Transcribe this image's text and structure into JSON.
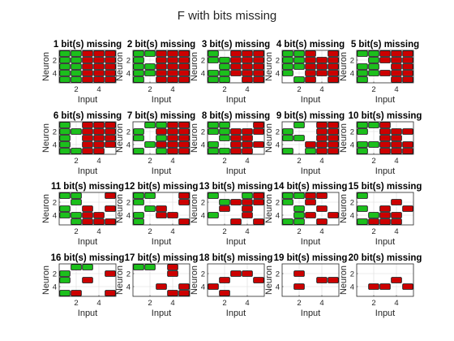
{
  "chart_data": {
    "type": "heatmap",
    "title": "F with bits missing",
    "xlabel": "Input",
    "ylabel": "Neuron",
    "x_ticks": [
      2,
      4
    ],
    "y_ticks": [
      2,
      4
    ],
    "xlim": [
      0.5,
      5.5
    ],
    "ylim": [
      0.5,
      5.5
    ],
    "grid": true,
    "cell_legend": {
      "G": "#1cbf1c",
      "R": "#cc0000",
      ".": "empty"
    },
    "panels": [
      {
        "title": "1 bit(s) missing",
        "rows": [
          "GGRRR",
          "GGRRR",
          "GGRRR",
          "GGRRR",
          "GGRRR"
        ]
      },
      {
        "title": "2 bit(s) missing",
        "rows": [
          "GGRRR",
          "G.RRR",
          "GGRRR",
          "GGRRR",
          "G.RRR"
        ]
      },
      {
        "title": "3 bit(s) missing",
        "rows": [
          "G.RRR",
          "GGRRR",
          ".GRRR",
          "GGRRR",
          "GG.RR"
        ]
      },
      {
        "title": "4 bit(s) missing",
        "rows": [
          "GGR.R",
          "GGRRR",
          "GGRRR",
          "G.RRR",
          ".GR.R"
        ]
      },
      {
        "title": "5 bit(s) missing",
        "rows": [
          "GGRRR",
          ".GRRR",
          "GG.RR",
          "GGRRR",
          "G..RR"
        ]
      },
      {
        "title": "6 bit(s) missing",
        "rows": [
          "G.RRR",
          "GGRRR",
          "G.RRR",
          "G.RRR",
          "GGRR."
        ]
      },
      {
        "title": "7 bit(s) missing",
        "rows": [
          ".GGRR",
          "G.RRR",
          "G.GRR",
          ".GRRR",
          "G.GRR"
        ]
      },
      {
        "title": "8 bit(s) missing",
        "rows": [
          "GG..R",
          "GGRRR",
          ".GRR.",
          "G.RRR",
          "GGRR."
        ]
      },
      {
        "title": "9 bit(s) missing",
        "rows": [
          ".G.RR",
          "G..RR",
          "GG.RR",
          "..RRR",
          "G.GRR"
        ]
      },
      {
        "title": "10 bit(s) missing",
        "rows": [
          "GGR..",
          "G.RRR",
          "..RR.",
          "GGRRR",
          "G.RRR"
        ]
      },
      {
        "title": "11 bit(s) missing",
        "rows": [
          "GG..R",
          ".G...",
          "G.R.R",
          "GGRR.",
          ".GRRR"
        ]
      },
      {
        "title": "12 bit(s) missing",
        "rows": [
          "GG..R",
          "G...R",
          ".GR..",
          "G.RR.",
          "G...R"
        ]
      },
      {
        "title": "13 bit(s) missing",
        "rows": [
          "G..GR",
          ".GRRR",
          ".R.R.",
          "G..R.",
          "..R.R"
        ]
      },
      {
        "title": "14 bit(s) missing",
        "rows": [
          "GGRR.",
          "G.R..",
          ".G.R.",
          ".GR.R",
          "GG.R."
        ]
      },
      {
        "title": "15 bit(s) missing",
        "rows": [
          "G....",
          "...R.",
          "G.R.R",
          ".GRR.",
          "GRRR."
        ]
      },
      {
        "title": "16 bit(s) missing",
        "rows": [
          ".GG..",
          "G...R",
          "G.R..",
          ".....",
          "GR..R"
        ]
      },
      {
        "title": "17 bit(s) missing",
        "rows": [
          "GG.R.",
          "...R.",
          ".....",
          "..R.R",
          "...RR"
        ]
      },
      {
        "title": "18 bit(s) missing",
        "rows": [
          ".....",
          "..RR.",
          ".R..R",
          "R....",
          ".R..."
        ]
      },
      {
        "title": "19 bit(s) missing",
        "rows": [
          ".....",
          ".R...",
          "...RR",
          ".R...",
          "....."
        ]
      },
      {
        "title": "20 bit(s) missing",
        "rows": [
          ".....",
          ".....",
          "...R.",
          ".RR.R",
          "....."
        ]
      }
    ]
  }
}
